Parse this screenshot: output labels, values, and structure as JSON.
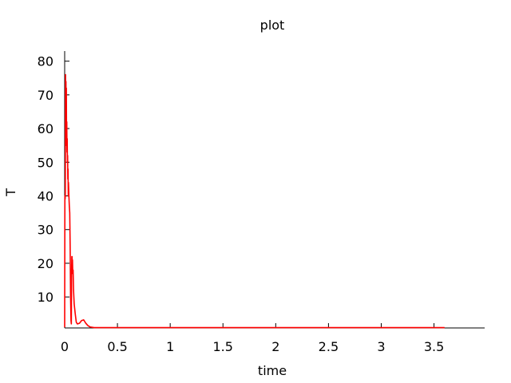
{
  "chart_data": {
    "type": "line",
    "title": "plot",
    "xlabel": "time",
    "ylabel": "T",
    "xlim": [
      0,
      3.98
    ],
    "ylim": [
      0.8,
      83
    ],
    "x_ticks": [
      0,
      0.5,
      1,
      1.5,
      2,
      2.5,
      3,
      3.5
    ],
    "x_tick_labels": [
      "0",
      "0.5",
      "1",
      "1.5",
      "2",
      "2.5",
      "3",
      "3.5"
    ],
    "y_ticks": [
      10,
      20,
      30,
      40,
      50,
      60,
      70,
      80
    ],
    "y_tick_labels": [
      "10",
      "20",
      "30",
      "40",
      "50",
      "60",
      "70",
      "80"
    ],
    "grid": false,
    "legend": "none",
    "series": [
      {
        "color": "#ff0000",
        "x": [
          0.0,
          0.002,
          0.004,
          0.006,
          0.008,
          0.01,
          0.012,
          0.014,
          0.016,
          0.018,
          0.02,
          0.022,
          0.024,
          0.026,
          0.028,
          0.03,
          0.032,
          0.034,
          0.036,
          0.04,
          0.044,
          0.048,
          0.052,
          0.056,
          0.06,
          0.063,
          0.066,
          0.068,
          0.07,
          0.072,
          0.074,
          0.076,
          0.08,
          0.084,
          0.09,
          0.1,
          0.11,
          0.12,
          0.14,
          0.16,
          0.18,
          0.2,
          0.22,
          0.24,
          0.28,
          0.32,
          0.4,
          0.6,
          1.0,
          2.0,
          3.0,
          3.6
        ],
        "values": [
          1,
          40,
          39,
          40,
          76,
          60,
          74,
          65,
          72,
          55,
          62,
          53,
          57,
          50,
          52,
          45,
          48,
          40,
          44,
          40,
          37,
          35,
          25,
          10,
          3,
          2,
          18,
          22,
          22,
          17,
          21,
          18,
          18,
          12,
          8,
          5,
          2.5,
          2,
          2.2,
          3,
          3.2,
          2.2,
          1.5,
          1.1,
          0.9,
          0.9,
          0.9,
          0.9,
          0.9,
          0.9,
          0.9,
          0.9
        ]
      }
    ]
  }
}
